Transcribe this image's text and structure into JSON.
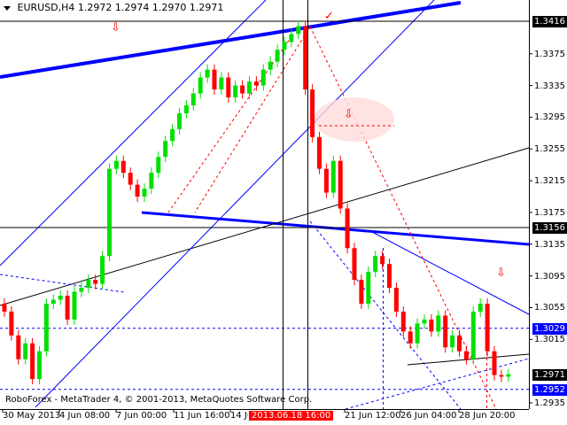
{
  "header": {
    "symbol": "EURUSD,H4",
    "open": "1.2972",
    "high": "1.2974",
    "low": "1.2970",
    "close": "1.2971"
  },
  "footer": {
    "copyright": "RoboForex - MetaTrader 4, © 2001-2013, MetaQuotes Software Corp."
  },
  "colors": {
    "bull": "#00e000",
    "bear": "#ff0000",
    "trend": "#0000ff",
    "background": "#ffffff"
  },
  "chart_data": {
    "type": "candlestick",
    "timeframe": "H4",
    "ylim": [
      1.2925,
      1.344
    ],
    "price_ticks": [
      "1.3375",
      "1.3335",
      "1.3295",
      "1.3255",
      "1.3215",
      "1.3175",
      "1.3135",
      "1.3095",
      "1.3055",
      "1.3015",
      "1.2935"
    ],
    "marked_levels": [
      {
        "label": "1.3416",
        "style": "black"
      },
      {
        "label": "1.3156",
        "style": "black"
      },
      {
        "label": "1.3029",
        "style": "blue"
      },
      {
        "label": "1.2971",
        "style": "black"
      },
      {
        "label": "1.2952",
        "style": "blue"
      }
    ],
    "time_ticks": [
      "30 May 2013",
      "4 Jun 08:00",
      "7 Jun 00:00",
      "11 Jun 16:00",
      "14 Jun 08:00",
      "21 Jun 12:00",
      "26 Jun 04:00",
      "28 Jun 20:00"
    ],
    "crosshair_time": "2013.06.18 16:00",
    "closes": [
      1.305,
      1.302,
      1.299,
      1.301,
      1.2965,
      1.3,
      1.306,
      1.3065,
      1.307,
      1.304,
      1.3075,
      1.308,
      1.309,
      1.3085,
      1.312,
      1.323,
      1.324,
      1.3225,
      1.321,
      1.3195,
      1.3205,
      1.3225,
      1.3245,
      1.3265,
      1.328,
      1.33,
      1.331,
      1.3325,
      1.3345,
      1.3355,
      1.333,
      1.3345,
      1.332,
      1.3335,
      1.3325,
      1.334,
      1.3335,
      1.3355,
      1.3365,
      1.338,
      1.339,
      1.34,
      1.341,
      1.333,
      1.327,
      1.323,
      1.32,
      1.324,
      1.318,
      1.313,
      1.309,
      1.306,
      1.31,
      1.312,
      1.311,
      1.308,
      1.305,
      1.3025,
      1.301,
      1.3035,
      1.304,
      1.3025,
      1.3045,
      1.3005,
      1.302,
      1.3,
      1.299,
      1.305,
      1.306,
      1.3,
      1.297,
      1.2968,
      1.2971
    ]
  }
}
